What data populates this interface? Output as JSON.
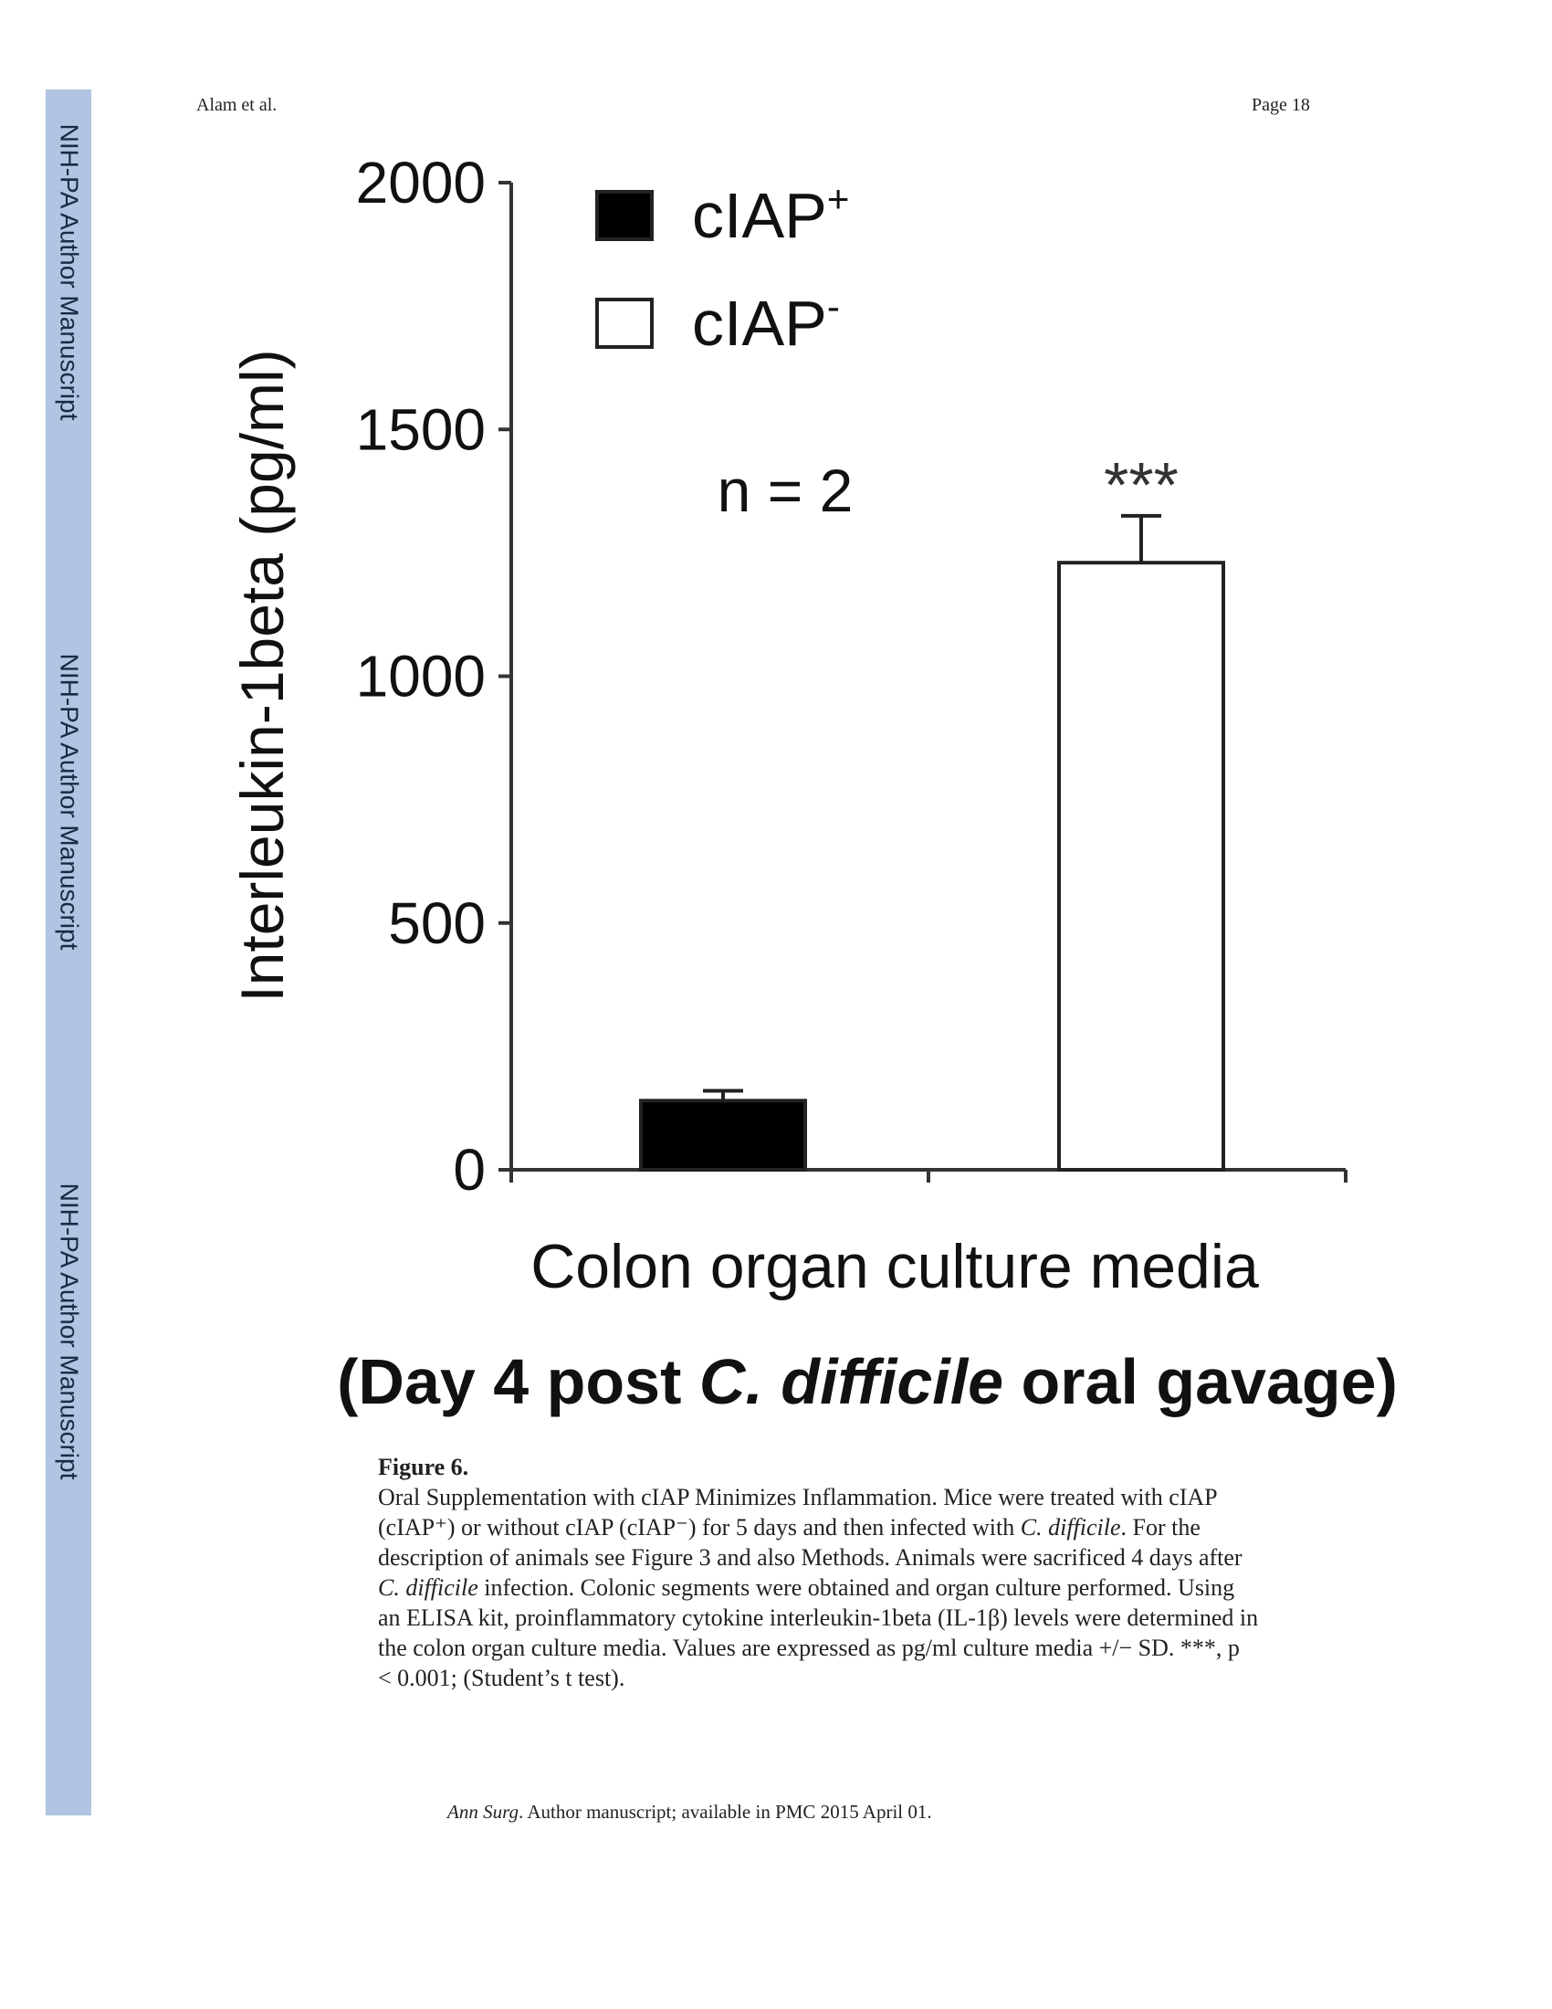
{
  "header": {
    "author": "Alam et al.",
    "page": "Page 18"
  },
  "sidebar": {
    "labels": [
      "NIH-PA Author Manuscript",
      "NIH-PA Author Manuscript",
      "NIH-PA Author Manuscript"
    ]
  },
  "chart_data": {
    "type": "bar",
    "categories": [
      "Colon organ culture media"
    ],
    "series": [
      {
        "name": "cIAP+",
        "values": [
          140
        ],
        "error": [
          20
        ],
        "fill": "#000000"
      },
      {
        "name": "cIAP-",
        "values": [
          1230
        ],
        "error": [
          95
        ],
        "fill": "#ffffff"
      }
    ],
    "ylabel": "Interleukin-1beta (pg/ml)",
    "xlabel": "Colon organ culture media",
    "subtitle_parts": [
      "(Day 4 post ",
      "C. difficile",
      " oral gavage)"
    ],
    "ylim": [
      0,
      2000
    ],
    "yticks": [
      "0",
      "500",
      "1000",
      "1500",
      "2000"
    ],
    "annotations": {
      "n": "n = 2",
      "significance": "***"
    },
    "legend_placement": "top-left",
    "legend": [
      {
        "base": "cIAP",
        "sup": "+"
      },
      {
        "base": "cIAP",
        "sup": "-"
      }
    ]
  },
  "caption": {
    "label": "Figure 6.",
    "lines": [
      "Oral Supplementation with cIAP Minimizes Inflammation. Mice were treated with cIAP",
      "(cIAP⁺) or without cIAP (cIAP⁻) for 5 days and then infected with C. difficile. For the",
      "description of animals see Figure 3 and also Methods. Animals were sacrificed 4 days after",
      "C. difficile infection. Colonic segments were obtained and organ culture performed. Using",
      "an ELISA kit, proinflammatory cytokine interleukin-1beta (IL-1β) levels were determined in",
      "the colon organ culture media. Values are expressed as pg/ml culture media +/− SD. ***, p",
      "< 0.001; (Student’s t test)."
    ]
  },
  "footer": {
    "journal": "Ann Surg",
    "rest": ". Author manuscript; available in PMC 2015 April 01."
  }
}
